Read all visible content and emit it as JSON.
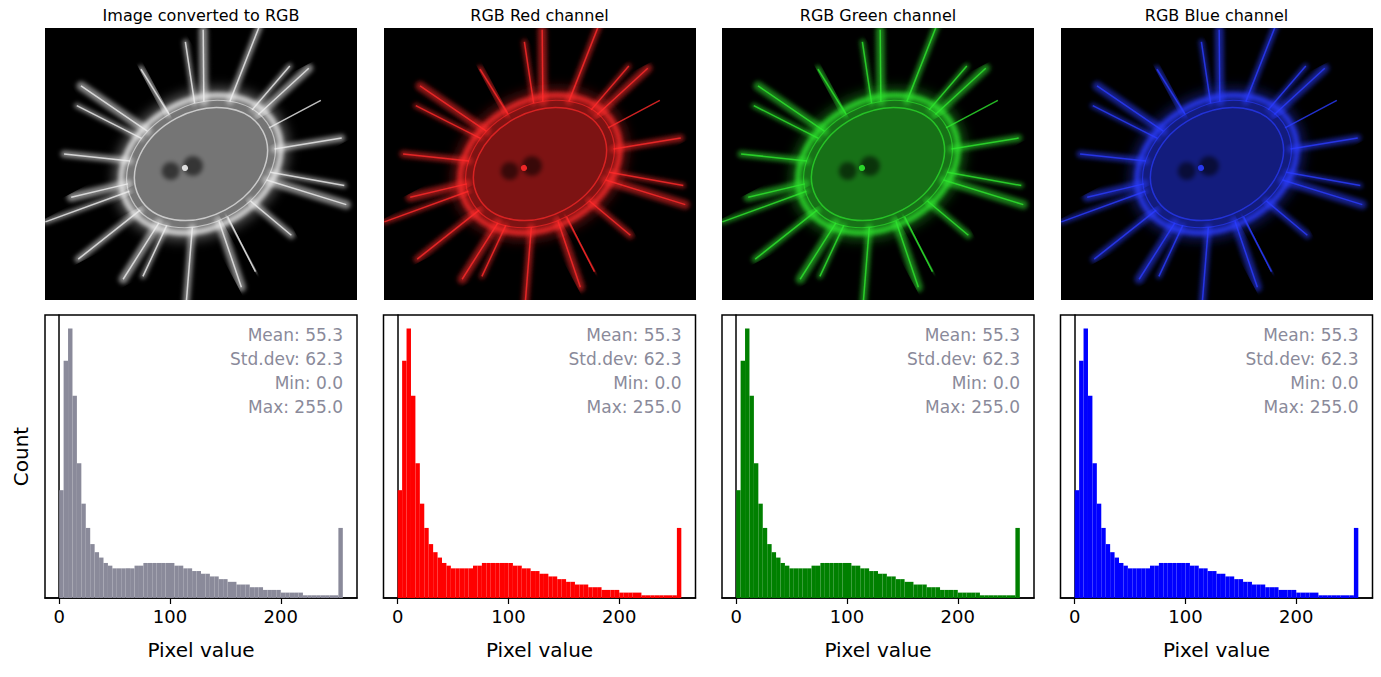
{
  "chart_data": [
    {
      "type": "histogram",
      "title": "Image converted to RGB",
      "annotations": [
        "Mean: 55.3",
        "Std.dev: 62.3",
        "Min: 0.0",
        "Max: 255.0"
      ],
      "xlabel": "Pixel value",
      "ylabel": "Count",
      "color": "#8a8a9a",
      "bins": [
        0,
        4,
        8,
        12,
        16,
        20,
        24,
        28,
        32,
        36,
        40,
        44,
        48,
        52,
        56,
        60,
        64,
        68,
        72,
        76,
        80,
        84,
        88,
        92,
        96,
        100,
        104,
        108,
        112,
        116,
        120,
        124,
        128,
        132,
        136,
        140,
        144,
        148,
        152,
        156,
        160,
        164,
        168,
        172,
        176,
        180,
        184,
        188,
        192,
        196,
        200,
        204,
        208,
        212,
        216,
        220,
        224,
        228,
        232,
        236,
        240,
        244,
        248,
        252,
        256
      ],
      "values": [
        40,
        88,
        100,
        75,
        50,
        35,
        26,
        20,
        17,
        15,
        13,
        12,
        11,
        11,
        11,
        11,
        11,
        12,
        12,
        13,
        13,
        13,
        13,
        13,
        13,
        13,
        12,
        12,
        11,
        11,
        10,
        10,
        9,
        9,
        8,
        8,
        7,
        7,
        6,
        6,
        5,
        5,
        5,
        4,
        4,
        4,
        3,
        3,
        3,
        3,
        2,
        2,
        2,
        2,
        2,
        1,
        1,
        1,
        1,
        1,
        1,
        1,
        1,
        26
      ],
      "xlim": [
        -12.8,
        268.8
      ],
      "xticks": [
        0,
        100,
        200
      ],
      "ylim": [
        0,
        105
      ],
      "yticks": [],
      "tick_labels": "x",
      "grid": false
    },
    {
      "type": "histogram",
      "title": "RGB Red channel",
      "annotations": [
        "Mean: 55.3",
        "Std.dev: 62.3",
        "Min: 0.0",
        "Max: 255.0"
      ],
      "xlabel": "Pixel value",
      "color": "#ff0000",
      "bins": [
        0,
        4,
        8,
        12,
        16,
        20,
        24,
        28,
        32,
        36,
        40,
        44,
        48,
        52,
        56,
        60,
        64,
        68,
        72,
        76,
        80,
        84,
        88,
        92,
        96,
        100,
        104,
        108,
        112,
        116,
        120,
        124,
        128,
        132,
        136,
        140,
        144,
        148,
        152,
        156,
        160,
        164,
        168,
        172,
        176,
        180,
        184,
        188,
        192,
        196,
        200,
        204,
        208,
        212,
        216,
        220,
        224,
        228,
        232,
        236,
        240,
        244,
        248,
        252,
        256
      ],
      "values": [
        40,
        88,
        100,
        75,
        50,
        35,
        26,
        20,
        17,
        15,
        13,
        12,
        11,
        11,
        11,
        11,
        11,
        12,
        12,
        13,
        13,
        13,
        13,
        13,
        13,
        13,
        12,
        12,
        11,
        11,
        10,
        10,
        9,
        9,
        8,
        8,
        7,
        7,
        6,
        6,
        5,
        5,
        5,
        4,
        4,
        4,
        3,
        3,
        3,
        3,
        2,
        2,
        2,
        2,
        2,
        1,
        1,
        1,
        1,
        1,
        1,
        1,
        1,
        26
      ],
      "xlim": [
        -12.8,
        268.8
      ],
      "xticks": [
        0,
        100,
        200
      ],
      "ylim": [
        0,
        105
      ],
      "yticks": [],
      "tick_labels": "x",
      "grid": false
    },
    {
      "type": "histogram",
      "title": "RGB Green channel",
      "annotations": [
        "Mean: 55.3",
        "Std.dev: 62.3",
        "Min: 0.0",
        "Max: 255.0"
      ],
      "xlabel": "Pixel value",
      "color": "#008000",
      "bins": [
        0,
        4,
        8,
        12,
        16,
        20,
        24,
        28,
        32,
        36,
        40,
        44,
        48,
        52,
        56,
        60,
        64,
        68,
        72,
        76,
        80,
        84,
        88,
        92,
        96,
        100,
        104,
        108,
        112,
        116,
        120,
        124,
        128,
        132,
        136,
        140,
        144,
        148,
        152,
        156,
        160,
        164,
        168,
        172,
        176,
        180,
        184,
        188,
        192,
        196,
        200,
        204,
        208,
        212,
        216,
        220,
        224,
        228,
        232,
        236,
        240,
        244,
        248,
        252,
        256
      ],
      "values": [
        40,
        88,
        100,
        75,
        50,
        35,
        26,
        20,
        17,
        15,
        13,
        12,
        11,
        11,
        11,
        11,
        11,
        12,
        12,
        13,
        13,
        13,
        13,
        13,
        13,
        13,
        12,
        12,
        11,
        11,
        10,
        10,
        9,
        9,
        8,
        8,
        7,
        7,
        6,
        6,
        5,
        5,
        5,
        4,
        4,
        4,
        3,
        3,
        3,
        3,
        2,
        2,
        2,
        2,
        2,
        1,
        1,
        1,
        1,
        1,
        1,
        1,
        1,
        26
      ],
      "xlim": [
        -12.8,
        268.8
      ],
      "xticks": [
        0,
        100,
        200
      ],
      "ylim": [
        0,
        105
      ],
      "yticks": [],
      "tick_labels": "x",
      "grid": false
    },
    {
      "type": "histogram",
      "title": "RGB Blue channel",
      "annotations": [
        "Mean: 55.3",
        "Std.dev: 62.3",
        "Min: 0.0",
        "Max: 255.0"
      ],
      "xlabel": "Pixel value",
      "color": "#0000ff",
      "bins": [
        0,
        4,
        8,
        12,
        16,
        20,
        24,
        28,
        32,
        36,
        40,
        44,
        48,
        52,
        56,
        60,
        64,
        68,
        72,
        76,
        80,
        84,
        88,
        92,
        96,
        100,
        104,
        108,
        112,
        116,
        120,
        124,
        128,
        132,
        136,
        140,
        144,
        148,
        152,
        156,
        160,
        164,
        168,
        172,
        176,
        180,
        184,
        188,
        192,
        196,
        200,
        204,
        208,
        212,
        216,
        220,
        224,
        228,
        232,
        236,
        240,
        244,
        248,
        252,
        256
      ],
      "values": [
        40,
        88,
        100,
        75,
        50,
        35,
        26,
        20,
        17,
        15,
        13,
        12,
        11,
        11,
        11,
        11,
        11,
        12,
        12,
        13,
        13,
        13,
        13,
        13,
        13,
        13,
        12,
        12,
        11,
        11,
        10,
        10,
        9,
        9,
        8,
        8,
        7,
        7,
        6,
        6,
        5,
        5,
        5,
        4,
        4,
        4,
        3,
        3,
        3,
        3,
        2,
        2,
        2,
        2,
        2,
        1,
        1,
        1,
        1,
        1,
        1,
        1,
        1,
        26
      ],
      "xlim": [
        -12.8,
        268.8
      ],
      "xticks": [
        0,
        100,
        200
      ],
      "ylim": [
        0,
        105
      ],
      "yticks": [],
      "tick_labels": "x",
      "grid": false
    }
  ]
}
